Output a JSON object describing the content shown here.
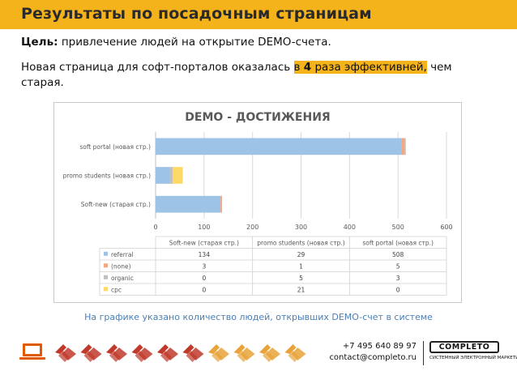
{
  "header": {
    "title": "Результаты по посадочным страницам"
  },
  "goal": {
    "label": "Цель:",
    "text": "привлечение людей на открытие DEMO-счета."
  },
  "description": {
    "before": "Новая страница для софт-порталов оказалась ",
    "highlight_a": "в ",
    "highlight_num": "4",
    "highlight_b": " раза эффективней,",
    "after": " чем старая."
  },
  "caption": "На графике указано количество людей, открывших DEMO-счет в системе",
  "contact": {
    "phone": "+7 495 640 89 97",
    "email": "contact@completo.ru"
  },
  "logo": {
    "name": "COMPLETO",
    "tagline": "СИСТЕМНЫЙ ЭЛЕКТРОННЫЙ МАРКЕТИНГ"
  },
  "icons": [
    "laptop-icon",
    "handshake-icon"
  ],
  "colors": {
    "accent": "#f5b31b",
    "referral": "#9dc3e6",
    "none": "#f4a582",
    "organic": "#bfbfbf",
    "cpc": "#ffd966"
  },
  "chart_data": {
    "type": "bar",
    "orientation": "horizontal",
    "stacked": true,
    "title": "DEMO - ДОСТИЖЕНИЯ",
    "categories": [
      "soft portal (новая стр.)",
      "promo students (новая стр.)",
      "Soft-new (старая стр.)"
    ],
    "table_columns": [
      "Soft-new (старая стр.)",
      "promo students (новая стр.)",
      "soft portal (новая стр.)"
    ],
    "series": [
      {
        "name": "referral",
        "color": "#9dc3e6",
        "values": [
          508,
          29,
          134
        ]
      },
      {
        "name": "(none)",
        "color": "#f4a582",
        "values": [
          5,
          1,
          3
        ]
      },
      {
        "name": "organic",
        "color": "#bfbfbf",
        "values": [
          3,
          5,
          0
        ]
      },
      {
        "name": "cpc",
        "color": "#ffd966",
        "values": [
          0,
          21,
          0
        ]
      }
    ],
    "xticks": [
      "0",
      "100",
      "200",
      "300",
      "400",
      "500",
      "600"
    ],
    "xlim": [
      0,
      600
    ],
    "grid": true,
    "legend": "data table below chart"
  }
}
